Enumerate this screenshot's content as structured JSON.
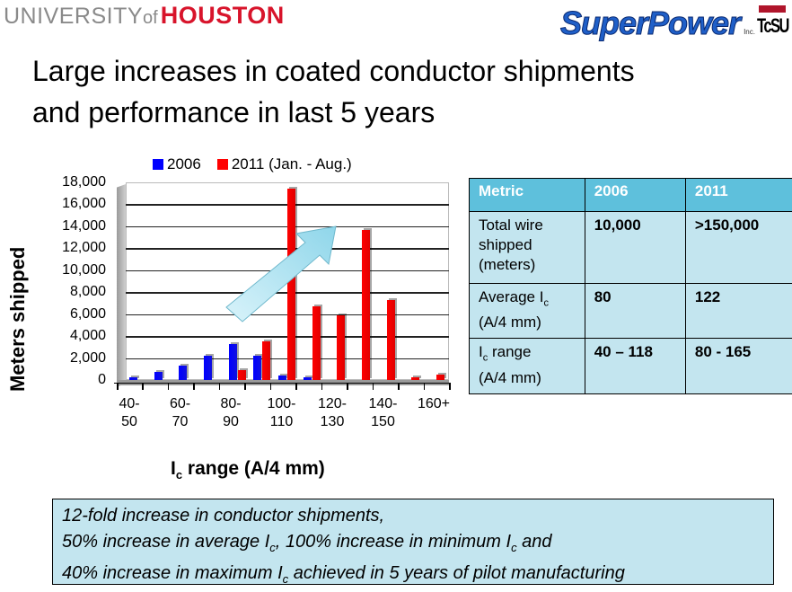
{
  "logos": {
    "university_prefix": "UNIVERSITY",
    "university_of": "of",
    "university_name": "HOUSTON",
    "superpower": "SuperPower",
    "superpower_suffix": "Inc.",
    "tcsu": "TcSU"
  },
  "title": {
    "line1": "Large increases in coated conductor shipments",
    "line2": "and performance in last 5 years"
  },
  "chart_data": {
    "type": "bar",
    "title": "",
    "xlabel": "Ic range (A/4 mm)",
    "xlabel_main": "I",
    "xlabel_sub": "c",
    "xlabel_rest": " range (A/4 mm)",
    "ylabel": "Meters shipped",
    "ylim": [
      0,
      18000
    ],
    "yticks": [
      "18,000",
      "16,000",
      "14,000",
      "12,000",
      "10,000",
      "8,000",
      "6,000",
      "4,000",
      "2,000",
      "0"
    ],
    "categories": [
      "40-50",
      "50-60",
      "60-70",
      "70-80",
      "80-90",
      "90-100",
      "100-110",
      "110-120",
      "120-130",
      "130-140",
      "140-150",
      "150-160",
      "160+"
    ],
    "tick_labels": [
      {
        "top": "40-",
        "bottom": "50"
      },
      {
        "top": "60-",
        "bottom": "70"
      },
      {
        "top": "80-",
        "bottom": "90"
      },
      {
        "top": "100-",
        "bottom": "110"
      },
      {
        "top": "120-",
        "bottom": "130"
      },
      {
        "top": "140-",
        "bottom": "150"
      },
      {
        "top": "160+",
        "bottom": ""
      }
    ],
    "series": [
      {
        "name": "2006",
        "color": "#0000ff",
        "values": [
          200,
          700,
          1300,
          2200,
          3300,
          2200,
          400,
          200,
          0,
          0,
          0,
          0,
          0
        ]
      },
      {
        "name": "2011 (Jan. - Aug.)",
        "color": "#ff0000",
        "values": [
          0,
          0,
          0,
          0,
          900,
          3500,
          17400,
          6700,
          5900,
          13700,
          7300,
          200,
          500
        ]
      }
    ],
    "grid": true,
    "legend_position": "top",
    "annotation": "light-blue upward trend arrow"
  },
  "legend": {
    "items": [
      {
        "label": "2006",
        "color": "#0000ff"
      },
      {
        "label": "2011 (Jan. - Aug.)",
        "color": "#ff0000"
      }
    ]
  },
  "table": {
    "headers": [
      "Metric",
      "2006",
      "2011"
    ],
    "rows": [
      {
        "metric_lines": [
          "Total wire",
          "shipped",
          "(meters)"
        ],
        "v2006": "10,000",
        "v2011": ">150,000"
      },
      {
        "metric_main": "Average I",
        "metric_sub": "c",
        "metric_line2": "(A/4 mm)",
        "v2006": "80",
        "v2011": "122"
      },
      {
        "metric_main": "I",
        "metric_sub": "c",
        "metric_after": " range",
        "metric_line2": "(A/4 mm)",
        "v2006": "40 – 118",
        "v2011": "80 - 165"
      }
    ]
  },
  "summary": {
    "line1": "12-fold increase in conductor shipments,",
    "line2_a": "50% increase in average I",
    "line2_sub1": "c",
    "line2_b": ", 100% increase in minimum I",
    "line2_sub2": "c",
    "line2_c": " and",
    "line3_a": "40% increase in maximum I",
    "line3_sub": "c",
    "line3_b": " achieved in 5 years of pilot manufacturing"
  },
  "colors": {
    "table_header": "#5ec0dc",
    "table_cell": "#c3e5ef",
    "summary_bg": "#c3e5ef",
    "houston_red": "#d8142b",
    "arrow_fill": "#aee3f0"
  }
}
